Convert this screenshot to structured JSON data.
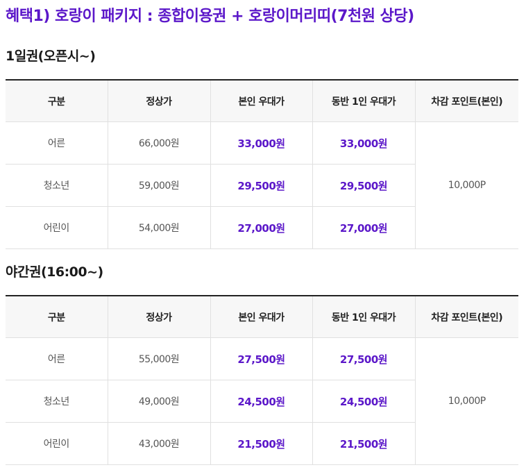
{
  "headline": "혜택1) 호랑이 패키지 : 종합이용권 + 호랑이머리띠(7천원 상당)",
  "headers": [
    "구분",
    "정상가",
    "본인 우대가",
    "동반 1인 우대가",
    "차감 포인트(본인)"
  ],
  "sections": [
    {
      "title": "1일권(오픈시~)",
      "points": "10,000P",
      "rows": [
        {
          "label": "어른",
          "regular": "66,000원",
          "self": "33,000원",
          "companion": "33,000원"
        },
        {
          "label": "청소년",
          "regular": "59,000원",
          "self": "29,500원",
          "companion": "29,500원"
        },
        {
          "label": "어린이",
          "regular": "54,000원",
          "self": "27,000원",
          "companion": "27,000원"
        }
      ]
    },
    {
      "title": "야간권(16:00~)",
      "points": "10,000P",
      "rows": [
        {
          "label": "어른",
          "regular": "55,000원",
          "self": "27,500원",
          "companion": "27,500원"
        },
        {
          "label": "청소년",
          "regular": "49,000원",
          "self": "24,500원",
          "companion": "24,500원"
        },
        {
          "label": "어린이",
          "regular": "43,000원",
          "self": "21,500원",
          "companion": "21,500원"
        }
      ]
    }
  ],
  "colors": {
    "accent": "#5b17c9",
    "header_bg": "#f7f7f7",
    "border": "#e0e0e0",
    "top_border": "#222222"
  }
}
